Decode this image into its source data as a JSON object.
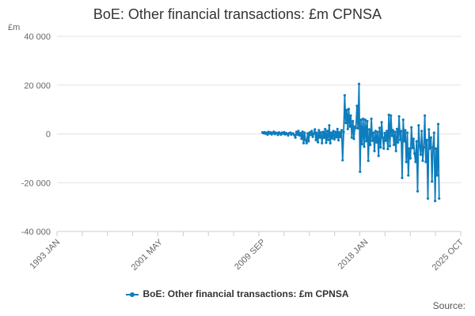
{
  "chart_data": {
    "type": "line",
    "title": "BoE: Other financial transactions: £m CPNSA",
    "yunit": "£m",
    "ylim": [
      -40000,
      40000
    ],
    "yticks": [
      40000,
      20000,
      0,
      -20000,
      -40000
    ],
    "ytick_labels": [
      "40 000",
      "20 000",
      "0",
      "-20 000",
      "-40 000"
    ],
    "x_range": [
      "1993-01",
      "2025-10"
    ],
    "xtick_labels": [
      "1993 JAN",
      "2001 MAY",
      "2009 SEP",
      "2018 JAN",
      "2025 OCT"
    ],
    "xtick_dates": [
      "1993-01",
      "2001-05",
      "2009-09",
      "2018-01",
      "2025-10"
    ],
    "grid": "horizontal",
    "legend_position": "bottom",
    "color": "#0f7dbd",
    "series": [
      {
        "name": "BoE: Other financial transactions: £m CPNSA",
        "points": [
          [
            "2009-09",
            600
          ],
          [
            "2009-10",
            300
          ],
          [
            "2009-11",
            700
          ],
          [
            "2009-12",
            100
          ],
          [
            "2010-01",
            500
          ],
          [
            "2010-02",
            -300
          ],
          [
            "2010-03",
            800
          ],
          [
            "2010-04",
            200
          ],
          [
            "2010-05",
            600
          ],
          [
            "2010-06",
            -200
          ],
          [
            "2010-07",
            400
          ],
          [
            "2010-08",
            900
          ],
          [
            "2010-09",
            -100
          ],
          [
            "2010-10",
            500
          ],
          [
            "2010-11",
            300
          ],
          [
            "2010-12",
            -400
          ],
          [
            "2011-01",
            600
          ],
          [
            "2011-02",
            200
          ],
          [
            "2011-03",
            -300
          ],
          [
            "2011-04",
            500
          ],
          [
            "2011-05",
            100
          ],
          [
            "2011-06",
            700
          ],
          [
            "2011-07",
            -200
          ],
          [
            "2011-08",
            400
          ],
          [
            "2011-09",
            0
          ],
          [
            "2011-10",
            -600
          ],
          [
            "2011-11",
            300
          ],
          [
            "2011-12",
            500
          ],
          [
            "2012-01",
            -300
          ],
          [
            "2012-02",
            200
          ],
          [
            "2012-03",
            100
          ],
          [
            "2012-04",
            -500
          ],
          [
            "2012-05",
            -1500
          ],
          [
            "2012-06",
            800
          ],
          [
            "2012-07",
            -300
          ],
          [
            "2012-08",
            1200
          ],
          [
            "2012-09",
            -600
          ],
          [
            "2012-10",
            300
          ],
          [
            "2012-11",
            -2000
          ],
          [
            "2012-12",
            900
          ],
          [
            "2013-01",
            -3800
          ],
          [
            "2013-02",
            500
          ],
          [
            "2013-03",
            -2600
          ],
          [
            "2013-04",
            -3800
          ],
          [
            "2013-05",
            200
          ],
          [
            "2013-06",
            -3000
          ],
          [
            "2013-07",
            600
          ],
          [
            "2013-08",
            -400
          ],
          [
            "2013-09",
            1200
          ],
          [
            "2013-10",
            -1200
          ],
          [
            "2013-11",
            200
          ],
          [
            "2013-12",
            1800
          ],
          [
            "2014-01",
            -2500
          ],
          [
            "2014-02",
            500
          ],
          [
            "2014-03",
            -3400
          ],
          [
            "2014-04",
            1500
          ],
          [
            "2014-05",
            -1500
          ],
          [
            "2014-06",
            600
          ],
          [
            "2014-07",
            -3800
          ],
          [
            "2014-08",
            800
          ],
          [
            "2014-09",
            -1600
          ],
          [
            "2014-10",
            2000
          ],
          [
            "2014-11",
            -3600
          ],
          [
            "2014-12",
            1200
          ],
          [
            "2015-01",
            -2500
          ],
          [
            "2015-02",
            3500
          ],
          [
            "2015-03",
            -3800
          ],
          [
            "2015-04",
            500
          ],
          [
            "2015-05",
            -1800
          ],
          [
            "2015-06",
            1200
          ],
          [
            "2015-07",
            -2200
          ],
          [
            "2015-08",
            800
          ],
          [
            "2015-09",
            -1400
          ],
          [
            "2015-10",
            2000
          ],
          [
            "2015-11",
            -2600
          ],
          [
            "2015-12",
            700
          ],
          [
            "2016-01",
            -1300
          ],
          [
            "2016-02",
            1500
          ],
          [
            "2016-03",
            -10800
          ],
          [
            "2016-04",
            700
          ],
          [
            "2016-05",
            15800
          ],
          [
            "2016-06",
            4500
          ],
          [
            "2016-07",
            9800
          ],
          [
            "2016-08",
            2000
          ],
          [
            "2016-09",
            10200
          ],
          [
            "2016-10",
            3000
          ],
          [
            "2016-11",
            7500
          ],
          [
            "2016-12",
            -1500
          ],
          [
            "2017-01",
            5200
          ],
          [
            "2017-02",
            -2000
          ],
          [
            "2017-03",
            3000
          ],
          [
            "2017-04",
            2400
          ],
          [
            "2017-05",
            11500
          ],
          [
            "2017-06",
            2300
          ],
          [
            "2017-07",
            20500
          ],
          [
            "2017-08",
            -15500
          ],
          [
            "2017-09",
            5800
          ],
          [
            "2017-10",
            -4200
          ],
          [
            "2017-11",
            6200
          ],
          [
            "2017-12",
            -5200
          ],
          [
            "2018-01",
            5800
          ],
          [
            "2018-02",
            -3000
          ],
          [
            "2018-03",
            5200
          ],
          [
            "2018-04",
            -11000
          ],
          [
            "2018-05",
            1800
          ],
          [
            "2018-06",
            -4500
          ],
          [
            "2018-07",
            6200
          ],
          [
            "2018-08",
            -2800
          ],
          [
            "2018-09",
            500
          ],
          [
            "2018-10",
            -7000
          ],
          [
            "2018-11",
            1200
          ],
          [
            "2018-12",
            -3500
          ],
          [
            "2019-01",
            800
          ],
          [
            "2019-02",
            -9000
          ],
          [
            "2019-03",
            2500
          ],
          [
            "2019-04",
            -5500
          ],
          [
            "2019-05",
            4800
          ],
          [
            "2019-06",
            -1500
          ],
          [
            "2019-07",
            -6000
          ],
          [
            "2019-08",
            400
          ],
          [
            "2019-09",
            -2800
          ],
          [
            "2019-10",
            1200
          ],
          [
            "2019-11",
            -6200
          ],
          [
            "2019-12",
            7800
          ],
          [
            "2020-01",
            -5000
          ],
          [
            "2020-02",
            7500
          ],
          [
            "2020-03",
            -800
          ],
          [
            "2020-04",
            1500
          ],
          [
            "2020-05",
            -4500
          ],
          [
            "2020-06",
            800
          ],
          [
            "2020-07",
            -7000
          ],
          [
            "2020-08",
            2000
          ],
          [
            "2020-09",
            -3500
          ],
          [
            "2020-10",
            7200
          ],
          [
            "2020-11",
            -2500
          ],
          [
            "2020-12",
            1200
          ],
          [
            "2021-01",
            -18000
          ],
          [
            "2021-02",
            5800
          ],
          [
            "2021-03",
            -3000
          ],
          [
            "2021-04",
            1500
          ],
          [
            "2021-05",
            -11500
          ],
          [
            "2021-06",
            500
          ],
          [
            "2021-07",
            -17000
          ],
          [
            "2021-08",
            -6000
          ],
          [
            "2021-09",
            -10000
          ],
          [
            "2021-10",
            2700
          ],
          [
            "2021-11",
            -5800
          ],
          [
            "2021-12",
            -2000
          ],
          [
            "2022-01",
            -8000
          ],
          [
            "2022-02",
            -11500
          ],
          [
            "2022-03",
            -3000
          ],
          [
            "2022-04",
            -23500
          ],
          [
            "2022-05",
            3500
          ],
          [
            "2022-06",
            -5000
          ],
          [
            "2022-07",
            -8500
          ],
          [
            "2022-08",
            1200
          ],
          [
            "2022-09",
            -11000
          ],
          [
            "2022-10",
            -5500
          ],
          [
            "2022-11",
            7500
          ],
          [
            "2022-12",
            -11500
          ],
          [
            "2023-01",
            -2500
          ],
          [
            "2023-02",
            -26500
          ],
          [
            "2023-03",
            1800
          ],
          [
            "2023-04",
            -6000
          ],
          [
            "2023-05",
            -1500
          ],
          [
            "2023-06",
            -19500
          ],
          [
            "2023-07",
            -5500
          ],
          [
            "2023-08",
            500
          ],
          [
            "2023-09",
            -27500
          ],
          [
            "2023-10",
            -6000
          ],
          [
            "2023-11",
            -17000
          ],
          [
            "2023-12",
            4000
          ],
          [
            "2024-01",
            -26500
          ]
        ]
      }
    ]
  },
  "source_label": "Source:"
}
